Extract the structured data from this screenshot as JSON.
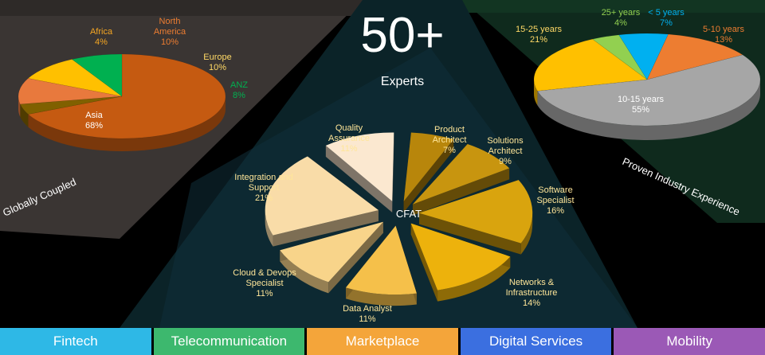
{
  "hero": {
    "number": "50+",
    "label": "Experts"
  },
  "chart_data": [
    {
      "type": "pie",
      "title": "Globally Coupled",
      "slices": [
        {
          "name": "Asia",
          "value": 68,
          "label": "68%",
          "color": "#C55A11",
          "text_color": "#FFFFFF"
        },
        {
          "name": "Africa",
          "value": 4,
          "label": "4%",
          "color": "#806000",
          "text_color": "#F5A623"
        },
        {
          "name": "North America",
          "value": 10,
          "label": "10%",
          "color": "#E8793D",
          "text_color": "#ED7D31"
        },
        {
          "name": "Europe",
          "value": 10,
          "label": "10%",
          "color": "#FFC000",
          "text_color": "#FFD966"
        },
        {
          "name": "ANZ",
          "value": 8,
          "label": "8%",
          "color": "#00B050",
          "text_color": "#00B050"
        }
      ]
    },
    {
      "type": "pie",
      "title": "CFAT",
      "slices": [
        {
          "name": "Product Architect",
          "value": 7,
          "label": "7%",
          "color": "#B8860B"
        },
        {
          "name": "Solutions Architect",
          "value": 9,
          "label": "9%",
          "color": "#C8950F"
        },
        {
          "name": "Software Specialist",
          "value": 16,
          "label": "16%",
          "color": "#D9A40E"
        },
        {
          "name": "Networks & Infrastructure",
          "value": 14,
          "label": "14%",
          "color": "#EDB20C"
        },
        {
          "name": "Data Analyst",
          "value": 11,
          "label": "11%",
          "color": "#F5C04A"
        },
        {
          "name": "Cloud & Devops Specialist",
          "value": 11,
          "label": "11%",
          "color": "#F8D48A"
        },
        {
          "name": "Integration and Support",
          "value": 21,
          "label": "21%",
          "color": "#F9DCA8"
        },
        {
          "name": "Quality Assurance",
          "value": 11,
          "label": "11%",
          "color": "#FBE8D0"
        }
      ]
    },
    {
      "type": "pie",
      "title": "Proven Industry Experience",
      "slices": [
        {
          "name": "10-15 years",
          "value": 55,
          "label": "55%",
          "color": "#A6A6A6",
          "text_color": "#FFFFFF"
        },
        {
          "name": "15-25 years",
          "value": 21,
          "label": "21%",
          "color": "#FFC000",
          "text_color": "#FFD966"
        },
        {
          "name": "25+ years",
          "value": 4,
          "label": "4%",
          "color": "#92D050",
          "text_color": "#92D050"
        },
        {
          "name": "< 5 years",
          "value": 7,
          "label": "7%",
          "color": "#00B0F0",
          "text_color": "#00B0F0"
        },
        {
          "name": "5-10 years",
          "value": 13,
          "label": "13%",
          "color": "#ED7D31",
          "text_color": "#ED7D31"
        }
      ]
    }
  ],
  "tabs": [
    {
      "label": "Fintech",
      "color": "#2EB8E6"
    },
    {
      "label": "Telecommunication",
      "color": "#3DB86E"
    },
    {
      "label": "Marketplace",
      "color": "#F4A53A"
    },
    {
      "label": "Digital Services",
      "color": "#3B6FE0"
    },
    {
      "label": "Mobility",
      "color": "#9B59B6"
    }
  ]
}
